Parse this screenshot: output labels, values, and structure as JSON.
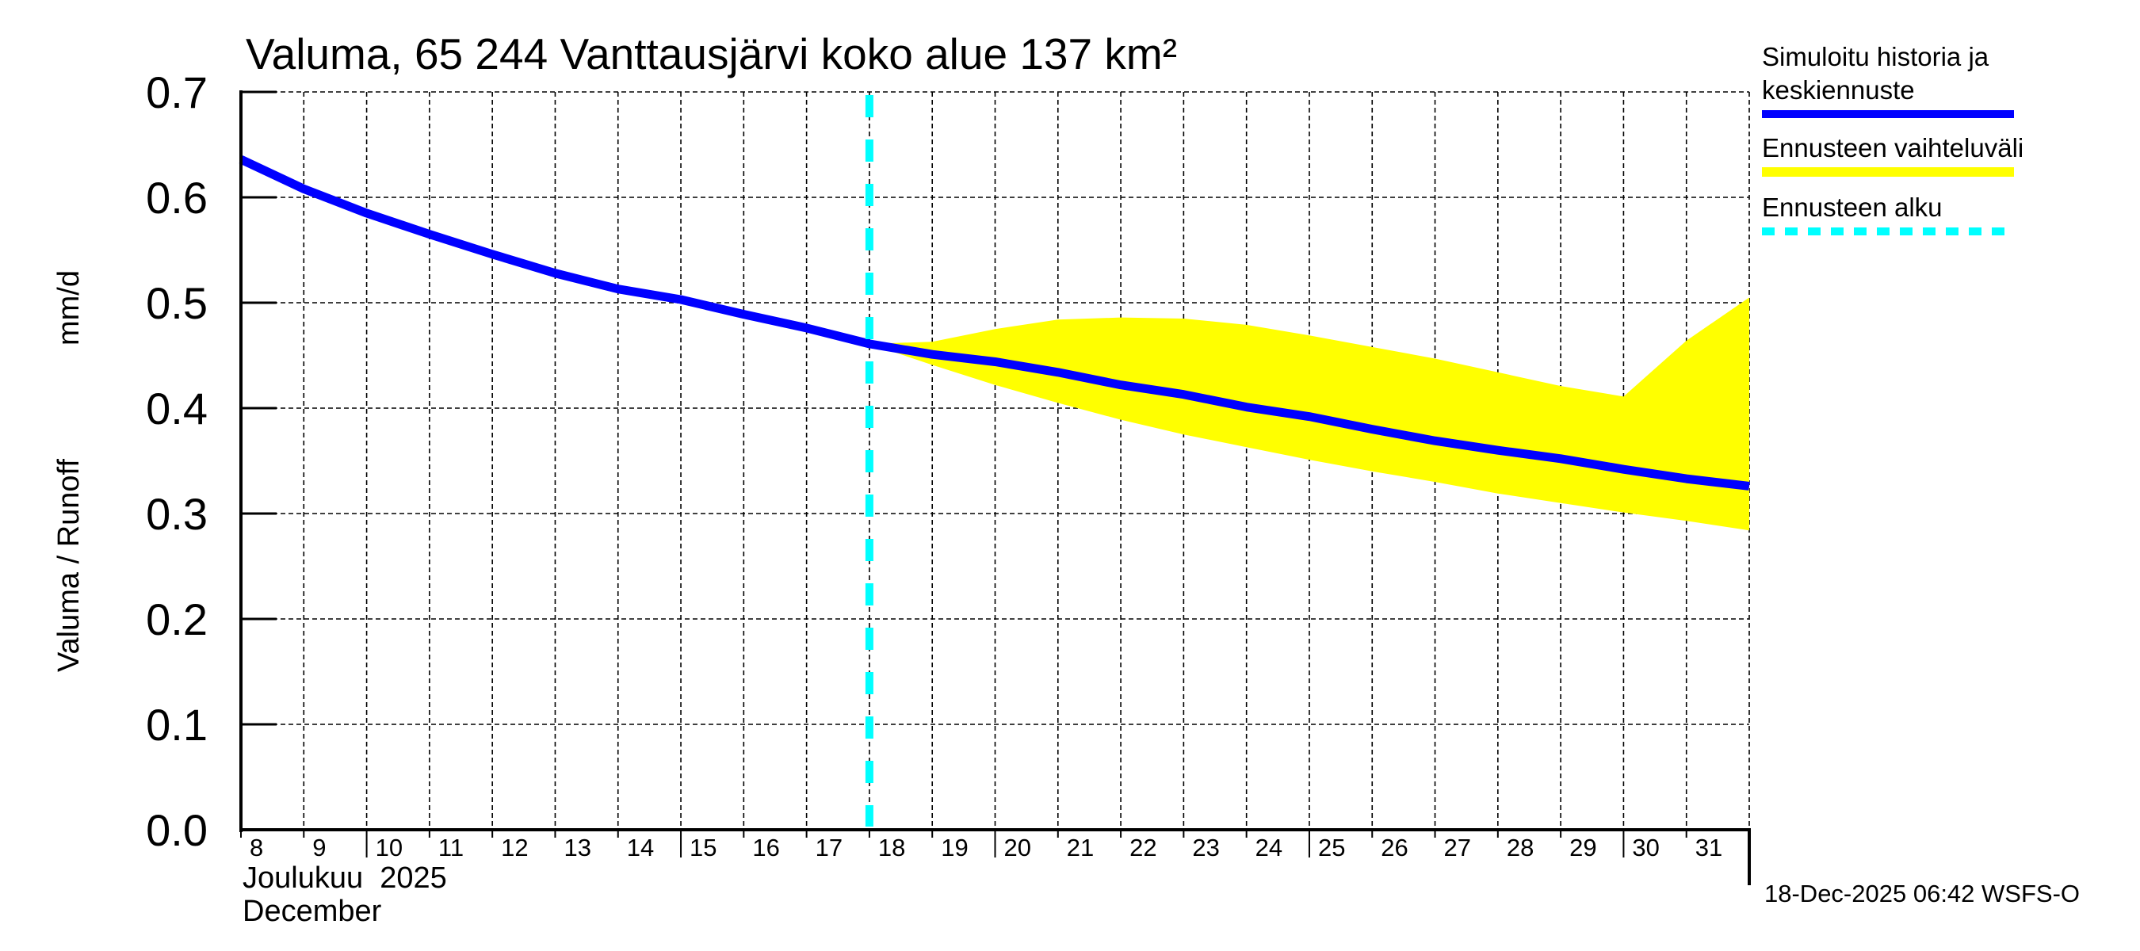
{
  "chart_data": {
    "type": "line",
    "title": "Valuma, 65 244 Vanttausjärvi koko alue 137 km²",
    "ylabel_left": "Valuma / Runoff",
    "ylabel_unit": "mm/d",
    "xlabel_line1": "Joulukuu  2025",
    "xlabel_line2": "December",
    "ylim": [
      0.0,
      0.7
    ],
    "yticks": [
      "0.0",
      "0.1",
      "0.2",
      "0.3",
      "0.4",
      "0.5",
      "0.6",
      "0.7"
    ],
    "x_days": [
      "8",
      "9",
      "10",
      "11",
      "12",
      "13",
      "14",
      "15",
      "16",
      "17",
      "18",
      "19",
      "20",
      "21",
      "22",
      "23",
      "24",
      "25",
      "26",
      "27",
      "28",
      "29",
      "30",
      "31"
    ],
    "x_range_days": [
      8,
      32
    ],
    "forecast_start_day": 18,
    "grid": true,
    "series": [
      {
        "name": "Simuloitu historia ja keskiennuste",
        "color": "#0000ff",
        "x": [
          8,
          9,
          10,
          11,
          12,
          13,
          14,
          15,
          16,
          17,
          18,
          19,
          20,
          21,
          22,
          23,
          24,
          25,
          26,
          27,
          28,
          29,
          30,
          31,
          32
        ],
        "y": [
          0.636,
          0.608,
          0.585,
          0.565,
          0.546,
          0.528,
          0.513,
          0.503,
          0.489,
          0.476,
          0.461,
          0.451,
          0.444,
          0.434,
          0.422,
          0.413,
          0.401,
          0.392,
          0.38,
          0.369,
          0.36,
          0.352,
          0.342,
          0.333,
          0.326
        ]
      },
      {
        "name": "Ennusteen vaihteluväli",
        "color": "#ffff00",
        "x": [
          18,
          19,
          20,
          21,
          22,
          23,
          24,
          25,
          26,
          27,
          28,
          29,
          30,
          31,
          32
        ],
        "upper": [
          0.461,
          0.463,
          0.475,
          0.484,
          0.486,
          0.485,
          0.479,
          0.469,
          0.458,
          0.447,
          0.434,
          0.421,
          0.411,
          0.464,
          0.505
        ],
        "lower": [
          0.461,
          0.441,
          0.422,
          0.405,
          0.389,
          0.375,
          0.363,
          0.351,
          0.34,
          0.33,
          0.319,
          0.31,
          0.301,
          0.293,
          0.284
        ]
      }
    ],
    "legend": [
      {
        "label_line1": "Simuloitu historia ja",
        "label_line2": "keskiennuste",
        "color": "#0000ff",
        "style": "solid"
      },
      {
        "label_line1": "Ennusteen vaihteluväli",
        "color": "#ffff00",
        "style": "solid"
      },
      {
        "label_line1": "Ennusteen alku",
        "color": "#00ffff",
        "style": "dashed"
      }
    ],
    "legend_position": "right",
    "footer": "18-Dec-2025 06:42 WSFS-O"
  }
}
